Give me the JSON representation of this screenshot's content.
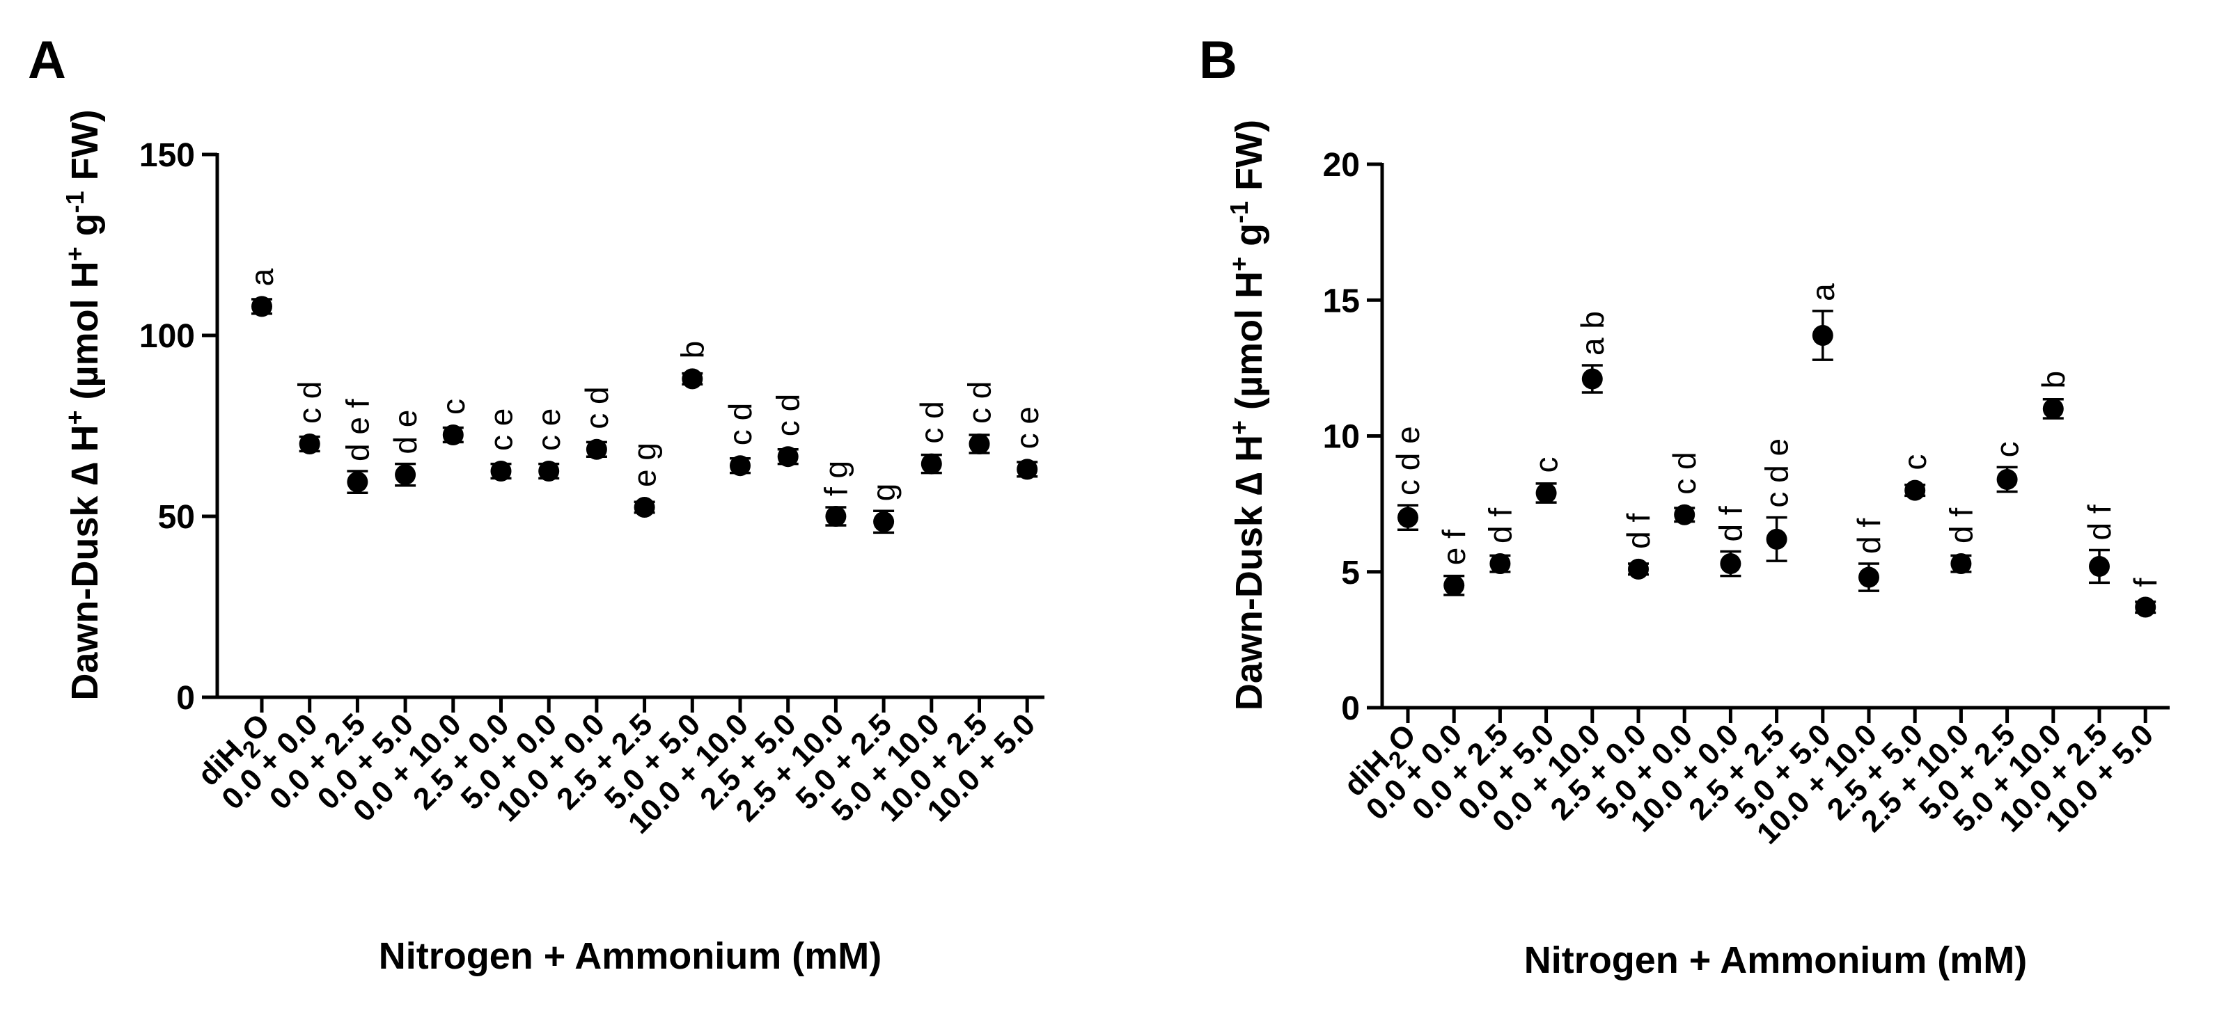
{
  "chart_data": [
    {
      "type": "scatter",
      "panel_label": "A",
      "title": "",
      "xlabel": "Nitrogen + Ammonium (mM)",
      "ylabel": "Dawn-Dusk ∆ H⁺ (µmol H⁺ g⁻¹ FW)",
      "ylim": [
        0,
        150
      ],
      "yticks": [
        "0",
        "50",
        "100",
        "150"
      ],
      "grid": false,
      "categories": [
        {
          "label": "diH₂O",
          "base": "diH",
          "sub": "2",
          "tail": "O"
        },
        {
          "label": "0.0 + 0.0"
        },
        {
          "label": "0.0 + 2.5"
        },
        {
          "label": "0.0 + 5.0"
        },
        {
          "label": "0.0 + 10.0"
        },
        {
          "label": "2.5 + 0.0"
        },
        {
          "label": "5.0 + 0.0"
        },
        {
          "label": "10.0 + 0.0"
        },
        {
          "label": "2.5 + 2.5"
        },
        {
          "label": "5.0 + 5.0"
        },
        {
          "label": "10.0 + 10.0"
        },
        {
          "label": "2.5 + 5.0"
        },
        {
          "label": "2.5 + 10.0"
        },
        {
          "label": "5.0 + 2.5"
        },
        {
          "label": "5.0 + 10.0"
        },
        {
          "label": "10.0 + 2.5"
        },
        {
          "label": "10.0 + 5.0"
        }
      ],
      "values": [
        108,
        70,
        59.5,
        61.5,
        72.5,
        62.5,
        62.5,
        68.5,
        52.5,
        88,
        64,
        66.5,
        50,
        48.5,
        64.5,
        70,
        63
      ],
      "errors": [
        2,
        2,
        3,
        3,
        2,
        2,
        2,
        2,
        1.5,
        1.5,
        2,
        2,
        2.5,
        3,
        2.5,
        2.5,
        2
      ],
      "significance": [
        "a",
        "c d",
        "d e f",
        "d e",
        "c",
        "c e",
        "c e",
        "c d",
        "e g",
        "b",
        "c d",
        "c d",
        "f g",
        "g",
        "c d",
        "c d",
        "c e"
      ]
    },
    {
      "type": "scatter",
      "panel_label": "B",
      "title": "",
      "xlabel": "Nitrogen + Ammonium (mM)",
      "ylabel": "Dawn-Dusk ∆ H⁺ (µmol H⁺ g⁻¹ FW)",
      "ylim": [
        0,
        20
      ],
      "yticks": [
        "0",
        "5",
        "10",
        "15",
        "20"
      ],
      "grid": false,
      "categories": [
        {
          "label": "diH₂O",
          "base": "diH",
          "sub": "2",
          "tail": "O"
        },
        {
          "label": "0.0 + 0.0"
        },
        {
          "label": "0.0 + 2.5"
        },
        {
          "label": "0.0 + 5.0"
        },
        {
          "label": "0.0 + 10.0"
        },
        {
          "label": "2.5 + 0.0"
        },
        {
          "label": "5.0 + 0.0"
        },
        {
          "label": "10.0 + 0.0"
        },
        {
          "label": "2.5 + 2.5"
        },
        {
          "label": "5.0 + 5.0"
        },
        {
          "label": "10.0 + 10.0"
        },
        {
          "label": "2.5 + 5.0"
        },
        {
          "label": "2.5 + 10.0"
        },
        {
          "label": "5.0 + 2.5"
        },
        {
          "label": "5.0 + 10.0"
        },
        {
          "label": "10.0 + 2.5"
        },
        {
          "label": "10.0 + 5.0"
        }
      ],
      "values": [
        7,
        4.5,
        5.3,
        7.9,
        12.1,
        5.1,
        7.1,
        5.3,
        6.2,
        13.7,
        4.8,
        8,
        5.3,
        8.4,
        11,
        5.2,
        3.7
      ],
      "errors": [
        0.45,
        0.35,
        0.3,
        0.35,
        0.5,
        0.2,
        0.25,
        0.45,
        0.8,
        0.9,
        0.5,
        0.2,
        0.3,
        0.45,
        0.35,
        0.6,
        0.2
      ],
      "significance": [
        "c d e",
        "e f",
        "d f",
        "c",
        "a b",
        "d f",
        "c d",
        "d f",
        "c d e",
        "a",
        "d f",
        "c",
        "d f",
        "c",
        "b",
        "d f",
        "f"
      ]
    }
  ]
}
